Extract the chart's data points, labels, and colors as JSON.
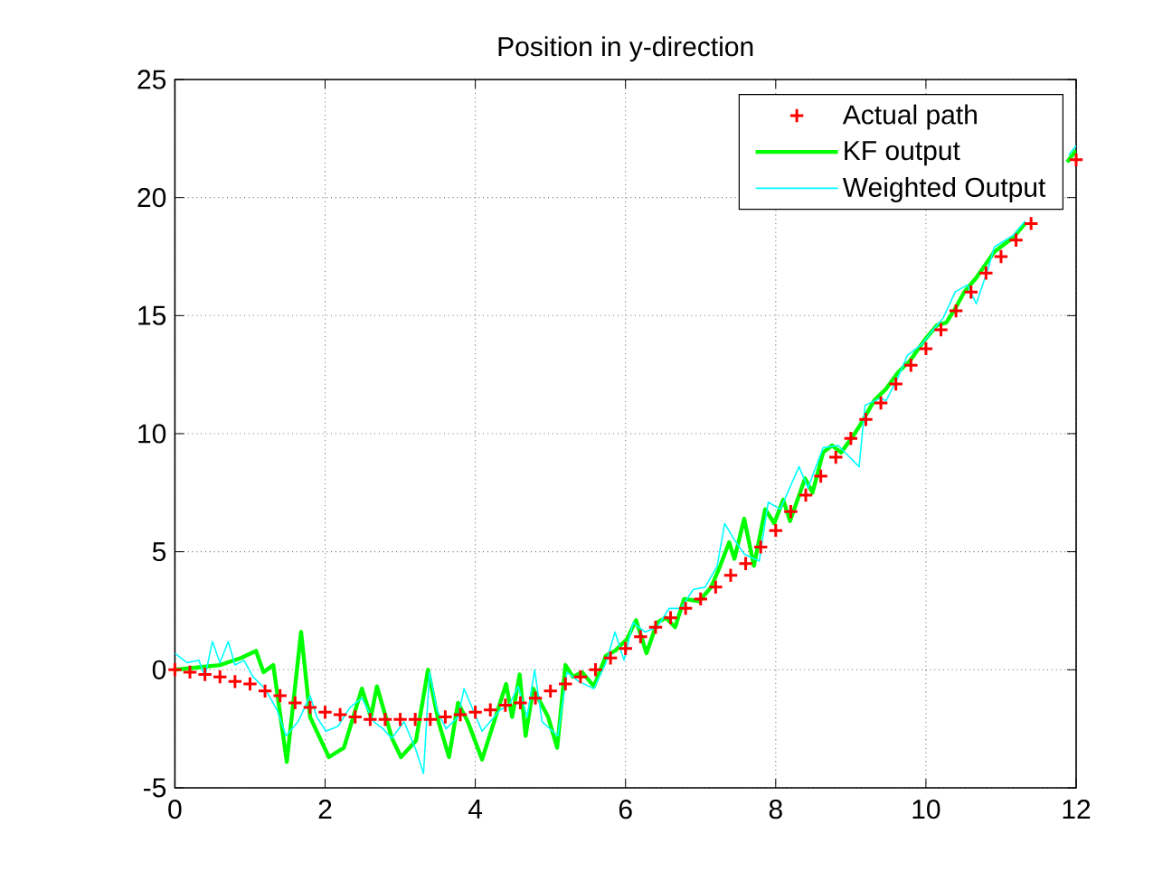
{
  "chart_data": {
    "type": "line",
    "title": "Position in y-direction",
    "xlim": [
      0,
      12
    ],
    "ylim": [
      -5,
      25
    ],
    "xticks": [
      0,
      2,
      4,
      6,
      8,
      10,
      12
    ],
    "yticks": [
      -5,
      0,
      5,
      10,
      15,
      20,
      25
    ],
    "grid": true,
    "legend": "top right",
    "series": [
      {
        "name": "Actual path",
        "type": "scatter",
        "marker": "cross",
        "color": "#ff0000",
        "x": [
          0,
          0.2,
          0.4,
          0.6,
          0.8,
          1.0,
          1.2,
          1.4,
          1.6,
          1.8,
          2.0,
          2.2,
          2.4,
          2.6,
          2.8,
          3.0,
          3.2,
          3.4,
          3.6,
          3.8,
          4.0,
          4.2,
          4.4,
          4.6,
          4.8,
          5.0,
          5.2,
          5.4,
          5.6,
          5.8,
          6.0,
          6.2,
          6.4,
          6.6,
          6.8,
          7.0,
          7.2,
          7.4,
          7.6,
          7.8,
          8.0,
          8.2,
          8.4,
          8.6,
          8.8,
          9.0,
          9.2,
          9.4,
          9.6,
          9.8,
          10.0,
          10.2,
          10.4,
          10.6,
          10.8,
          11.0,
          11.2,
          11.4,
          11.6,
          11.8,
          12.0
        ],
        "values": [
          0,
          -0.1,
          -0.2,
          -0.3,
          -0.5,
          -0.6,
          -0.9,
          -1.1,
          -1.4,
          -1.6,
          -1.8,
          -1.9,
          -2.0,
          -2.1,
          -2.1,
          -2.1,
          -2.1,
          -2.1,
          -2.0,
          -1.9,
          -1.8,
          -1.7,
          -1.5,
          -1.4,
          -1.2,
          -0.9,
          -0.6,
          -0.3,
          0.0,
          0.5,
          0.9,
          1.4,
          1.8,
          2.2,
          2.6,
          3.0,
          3.5,
          4.0,
          4.5,
          5.2,
          5.9,
          6.7,
          7.4,
          8.2,
          9.0,
          9.8,
          10.6,
          11.3,
          12.1,
          12.9,
          13.6,
          14.4,
          15.2,
          16.0,
          16.8,
          17.5,
          18.2,
          18.9,
          null,
          null,
          21.6
        ]
      },
      {
        "name": "KF output",
        "color": "#00ff00",
        "x": [
          0,
          0.3,
          0.6,
          0.88,
          1.08,
          1.18,
          1.31,
          1.49,
          1.68,
          1.8,
          2.05,
          2.25,
          2.49,
          2.61,
          2.69,
          2.89,
          3.01,
          3.21,
          3.37,
          3.51,
          3.65,
          3.77,
          3.9,
          4.09,
          4.41,
          4.49,
          4.59,
          4.67,
          4.77,
          4.97,
          5.09,
          5.2,
          5.3,
          5.42,
          5.58,
          5.74,
          5.86,
          6.02,
          6.14,
          6.28,
          6.42,
          6.54,
          6.66,
          6.78,
          6.98,
          7.14,
          7.26,
          7.38,
          7.45,
          7.58,
          7.71,
          7.86,
          7.98,
          8.1,
          8.19,
          8.39,
          8.49,
          8.63,
          8.75,
          8.87,
          9.03,
          9.15,
          9.31,
          9.47,
          9.63,
          9.79,
          9.99,
          10.15,
          10.27,
          10.39,
          10.51,
          10.67,
          10.91,
          11.16,
          11.32,
          11.6,
          11.88,
          12
        ],
        "values": [
          0,
          0.1,
          0.2,
          0.5,
          0.8,
          -0.1,
          0.2,
          -3.9,
          1.6,
          -2.0,
          -3.7,
          -3.3,
          -0.8,
          -2.0,
          -0.7,
          -2.9,
          -3.7,
          -3.0,
          0.0,
          -2.2,
          -3.7,
          -1.4,
          -2.2,
          -3.8,
          -0.6,
          -2.0,
          -0.2,
          -2.8,
          -0.8,
          -2.0,
          -3.3,
          0.2,
          -0.3,
          -0.1,
          -0.7,
          0.6,
          0.8,
          1.3,
          2.1,
          0.7,
          2.0,
          2.2,
          1.8,
          3.0,
          2.9,
          3.5,
          4.4,
          5.4,
          4.7,
          6.4,
          4.4,
          6.8,
          6.2,
          7.2,
          6.3,
          8.1,
          7.5,
          9.2,
          9.5,
          9.2,
          9.9,
          10.5,
          11.4,
          11.9,
          12.6,
          13.1,
          14.0,
          14.6,
          14.7,
          15.3,
          16.0,
          16.6,
          17.7,
          18.3,
          18.9,
          null,
          21.5,
          22.0
        ]
      },
      {
        "name": "Weighted Output",
        "color": "#00ffff",
        "x": [
          0,
          0.16,
          0.32,
          0.4,
          0.5,
          0.6,
          0.71,
          0.8,
          0.92,
          1.04,
          1.2,
          1.36,
          1.48,
          1.64,
          1.8,
          1.89,
          2.01,
          2.17,
          2.33,
          2.49,
          2.65,
          2.77,
          2.89,
          3.05,
          3.21,
          3.31,
          3.39,
          3.49,
          3.61,
          3.77,
          3.85,
          4.09,
          4.33,
          4.45,
          4.57,
          4.69,
          4.79,
          4.89,
          5.1,
          5.22,
          5.38,
          5.58,
          5.74,
          5.86,
          5.98,
          6.1,
          6.26,
          6.42,
          6.58,
          6.74,
          6.9,
          7.06,
          7.22,
          7.32,
          7.45,
          7.58,
          7.78,
          7.9,
          8.06,
          8.31,
          8.43,
          8.63,
          8.83,
          9.11,
          9.19,
          9.39,
          9.47,
          9.63,
          9.75,
          9.95,
          10.07,
          10.23,
          10.39,
          10.55,
          10.67,
          10.83,
          10.91,
          11.16,
          11.32,
          11.56,
          11.9,
          12
        ],
        "values": [
          0.7,
          0.3,
          0.4,
          -0.3,
          1.2,
          0.3,
          1.2,
          0.2,
          0.4,
          -0.3,
          -0.8,
          -1.7,
          -2.8,
          -2.2,
          -1.1,
          -2.0,
          -2.6,
          -2.4,
          -1.6,
          -1.2,
          -2.2,
          -2.5,
          -2.9,
          -2.2,
          -3.4,
          -4.4,
          -0.1,
          -1.7,
          -2.5,
          -2.0,
          -0.8,
          -2.6,
          -1.7,
          -1.5,
          -0.7,
          -2.0,
          0.0,
          -2.2,
          -2.8,
          -0.1,
          -0.5,
          -0.8,
          0.3,
          1.6,
          0.4,
          2.0,
          1.6,
          1.8,
          2.6,
          2.6,
          3.4,
          3.5,
          4.4,
          6.2,
          5.5,
          4.9,
          4.6,
          7.1,
          6.8,
          8.6,
          7.7,
          9.4,
          9.5,
          8.6,
          11.2,
          11.5,
          11.4,
          12.4,
          13.3,
          13.8,
          14.3,
          14.9,
          16.0,
          16.3,
          15.5,
          17.0,
          17.9,
          18.4,
          19.0,
          null,
          21.8,
          22.2
        ]
      }
    ]
  }
}
